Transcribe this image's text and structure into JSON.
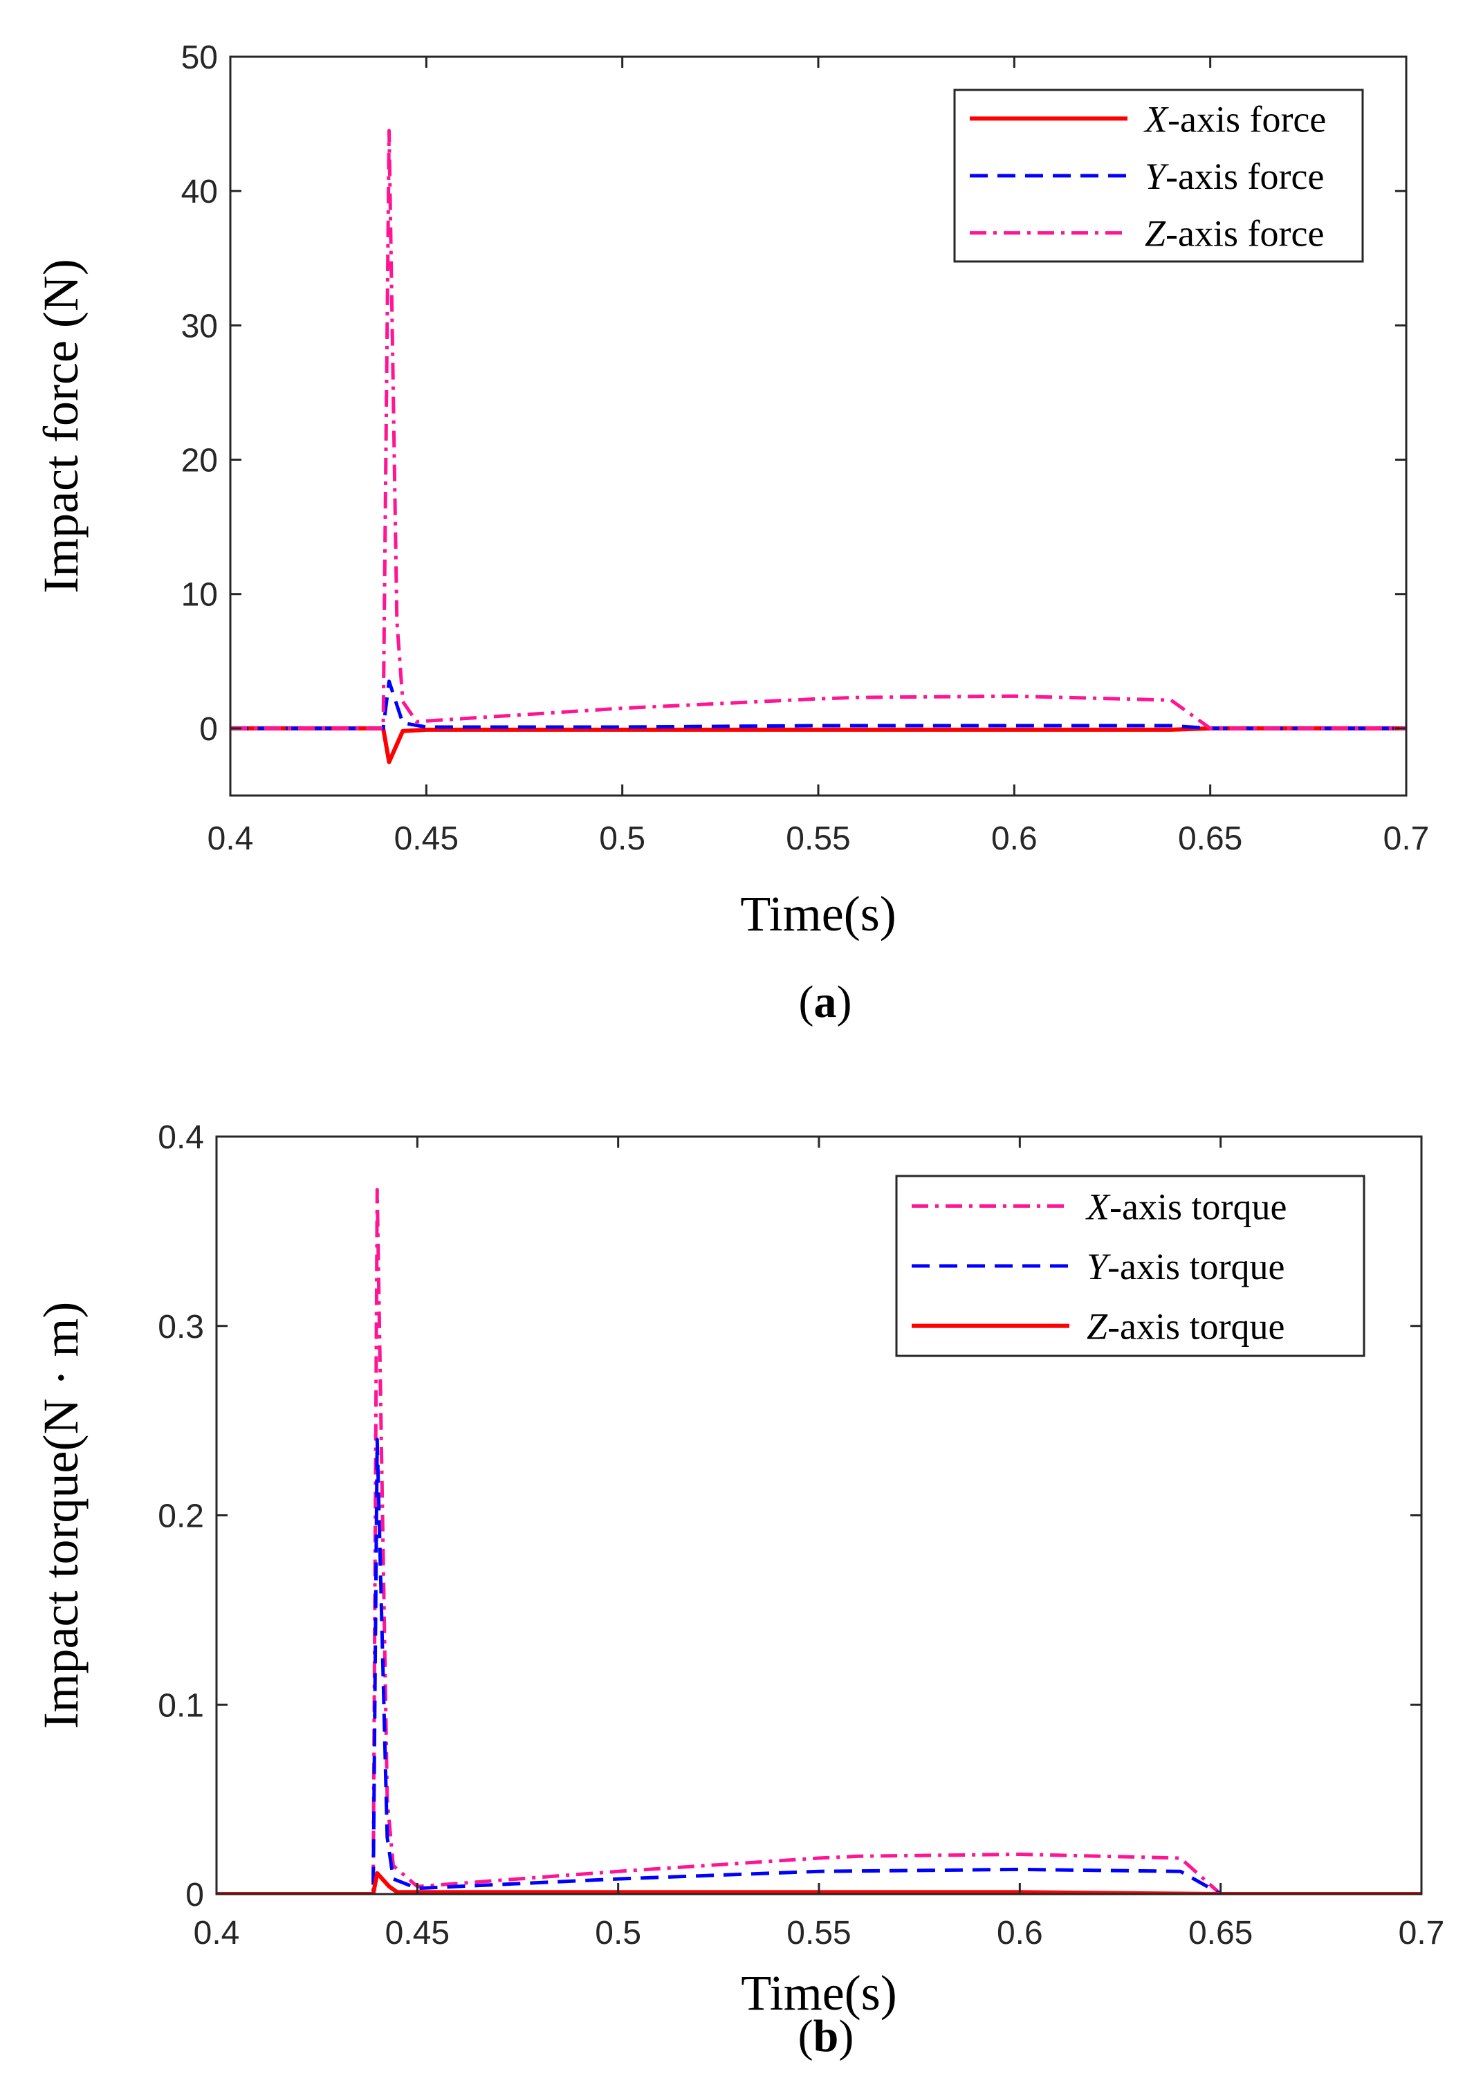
{
  "chart_data": [
    {
      "type": "line",
      "panel_label": "a",
      "caption_open": "(",
      "caption_close": ")",
      "xlabel": "Time(s)",
      "ylabel": "Impact force (N)",
      "xlim": [
        0.4,
        0.7
      ],
      "ylim": [
        -5,
        50
      ],
      "xticks": [
        0.4,
        0.45,
        0.5,
        0.55,
        0.6,
        0.65,
        0.7
      ],
      "xtick_labels": [
        "0.4",
        "0.45",
        "0.5",
        "0.55",
        "0.6",
        "0.65",
        "0.7"
      ],
      "yticks": [
        0,
        10,
        20,
        30,
        40,
        50
      ],
      "ytick_labels": [
        "0",
        "10",
        "20",
        "30",
        "40",
        "50"
      ],
      "grid": false,
      "legend_position": "top-right",
      "series": [
        {
          "name": "X-axis force",
          "axis_letter": "X",
          "legend_suffix": "-axis force",
          "color": "#ff0000",
          "style": "solid",
          "x": [
            0.4,
            0.439,
            0.4405,
            0.444,
            0.45,
            0.5,
            0.55,
            0.6,
            0.64,
            0.65,
            0.7
          ],
          "y": [
            0,
            0,
            -2.5,
            -0.2,
            -0.1,
            -0.1,
            -0.1,
            -0.1,
            -0.1,
            0,
            0
          ]
        },
        {
          "name": "Y-axis force",
          "axis_letter": "Y",
          "legend_suffix": "-axis force",
          "color": "#0000ff",
          "style": "dashed",
          "x": [
            0.4,
            0.439,
            0.4405,
            0.444,
            0.45,
            0.5,
            0.55,
            0.6,
            0.64,
            0.65,
            0.7
          ],
          "y": [
            0,
            0,
            3.5,
            0.4,
            0.1,
            0.1,
            0.2,
            0.2,
            0.2,
            0,
            0
          ]
        },
        {
          "name": "Z-axis force",
          "axis_letter": "Z",
          "legend_suffix": "-axis force",
          "color": "#ff1493",
          "style": "dashdot",
          "x": [
            0.4,
            0.439,
            0.4405,
            0.4425,
            0.444,
            0.4475,
            0.5,
            0.55,
            0.56,
            0.6,
            0.64,
            0.65,
            0.7
          ],
          "y": [
            0,
            0,
            44.5,
            8,
            2,
            0.5,
            1.5,
            2.2,
            2.3,
            2.4,
            2.1,
            0,
            0
          ]
        }
      ]
    },
    {
      "type": "line",
      "panel_label": "b",
      "caption_open": "(",
      "caption_close": ")",
      "xlabel": "Time(s)",
      "ylabel": "Impact torque(N · m)",
      "xlim": [
        0.4,
        0.7
      ],
      "ylim": [
        0,
        0.4
      ],
      "xticks": [
        0.4,
        0.45,
        0.5,
        0.55,
        0.6,
        0.65,
        0.7
      ],
      "xtick_labels": [
        "0.4",
        "0.45",
        "0.5",
        "0.55",
        "0.6",
        "0.65",
        "0.7"
      ],
      "yticks": [
        0,
        0.1,
        0.2,
        0.3,
        0.4
      ],
      "ytick_labels": [
        "0",
        "0.1",
        "0.2",
        "0.3",
        "0.4"
      ],
      "grid": false,
      "legend_position": "top-right",
      "series": [
        {
          "name": "X-axis torque",
          "axis_letter": "X",
          "legend_suffix": "-axis torque",
          "color": "#ff1493",
          "style": "dashdot",
          "x": [
            0.4,
            0.439,
            0.44,
            0.4425,
            0.444,
            0.45,
            0.5,
            0.55,
            0.56,
            0.6,
            0.64,
            0.65,
            0.7
          ],
          "y": [
            0,
            0,
            0.372,
            0.05,
            0.015,
            0.004,
            0.012,
            0.019,
            0.02,
            0.021,
            0.019,
            0,
            0
          ]
        },
        {
          "name": "Y-axis torque",
          "axis_letter": "Y",
          "legend_suffix": "-axis torque",
          "color": "#0000ff",
          "style": "dashed",
          "x": [
            0.4,
            0.439,
            0.44,
            0.4425,
            0.444,
            0.45,
            0.5,
            0.55,
            0.6,
            0.64,
            0.65,
            0.7
          ],
          "y": [
            0,
            0,
            0.24,
            0.03,
            0.008,
            0.003,
            0.008,
            0.012,
            0.013,
            0.012,
            0,
            0
          ]
        },
        {
          "name": "Z-axis torque",
          "axis_letter": "Z",
          "legend_suffix": "-axis torque",
          "color": "#ff0000",
          "style": "solid",
          "x": [
            0.4,
            0.439,
            0.44,
            0.443,
            0.445,
            0.5,
            0.6,
            0.65,
            0.7
          ],
          "y": [
            0,
            0,
            0.011,
            0.004,
            0.001,
            0.001,
            0.001,
            0,
            0
          ]
        }
      ]
    }
  ]
}
